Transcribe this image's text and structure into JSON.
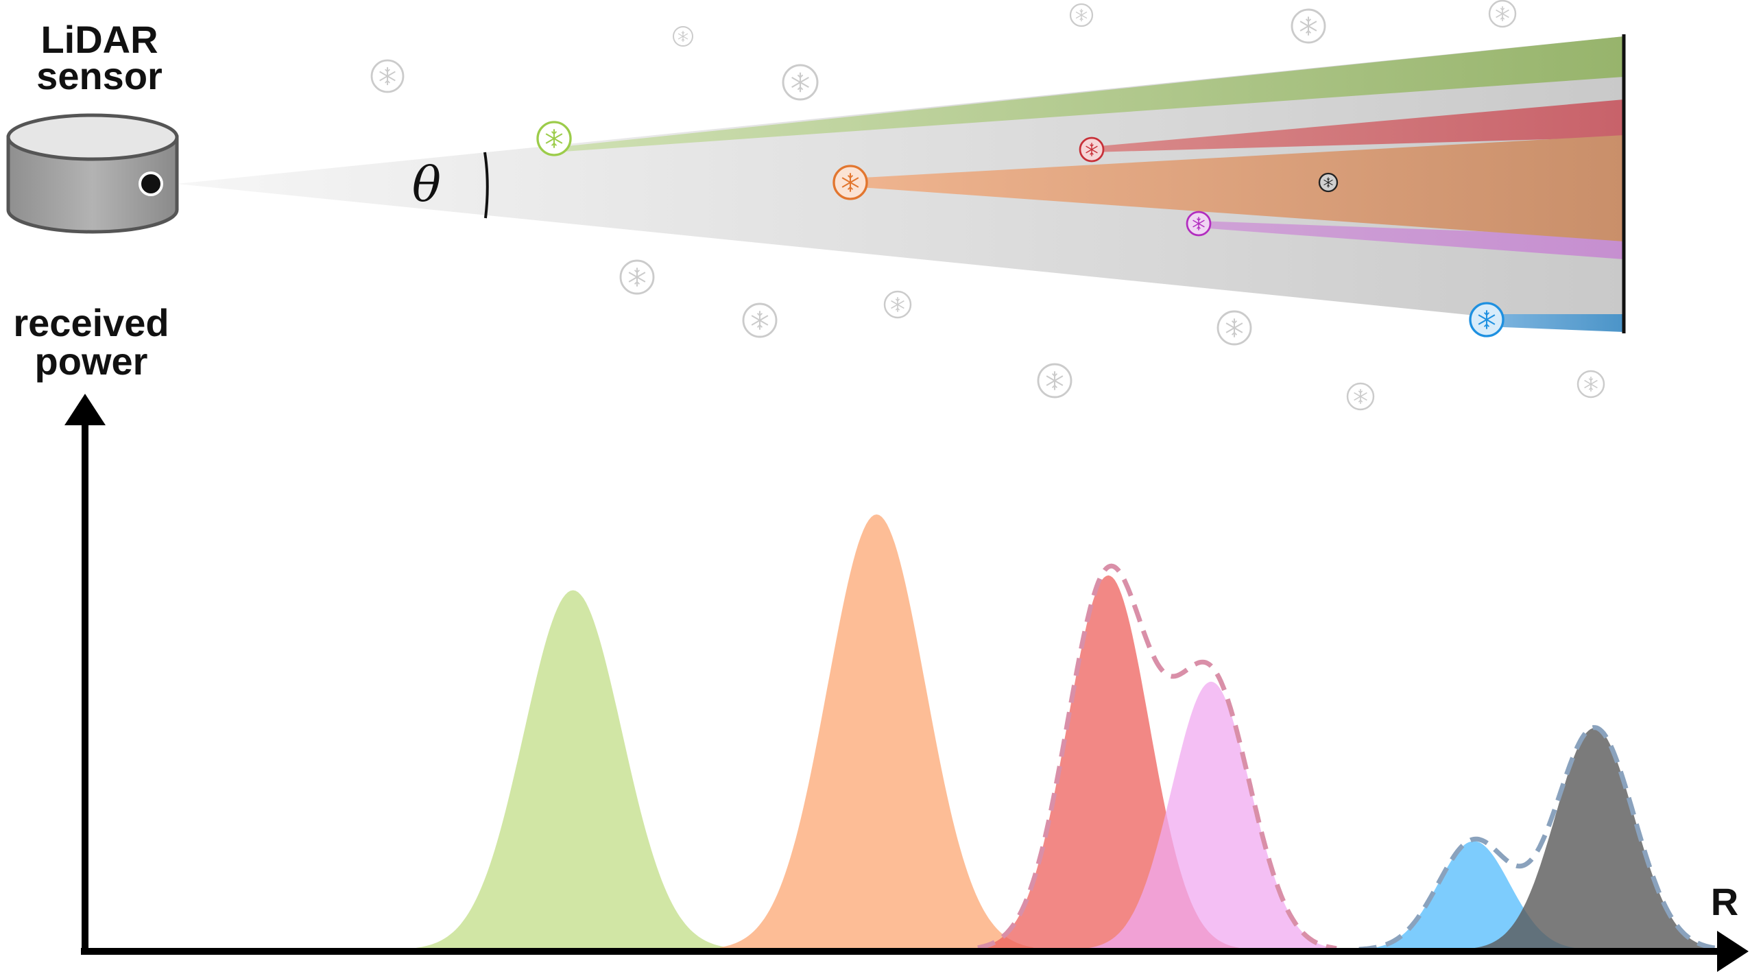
{
  "labels": {
    "sensor_line1": "LiDAR",
    "sensor_line2": "sensor",
    "ylabel_line1": "received",
    "ylabel_line2": "power",
    "xlabel": "R",
    "angle": "θ"
  },
  "colors": {
    "green": "#a9c97e",
    "orange": "#e88b5a",
    "red": "#d2575c",
    "magenta": "#c77bd0",
    "blue": "#2f8fd0",
    "black": "#222222",
    "gray_flake": "#c9c9c9"
  },
  "chart_data": {
    "type": "area",
    "x_unit": "relative range R",
    "ylim": [
      0,
      1
    ],
    "series": [
      {
        "key": "green",
        "center": 0.299,
        "height": 0.826,
        "width": 0.03
      },
      {
        "key": "orange",
        "center": 0.485,
        "height": 1.0,
        "width": 0.03
      },
      {
        "key": "red",
        "center": 0.627,
        "height": 0.86,
        "width": 0.025
      },
      {
        "key": "magenta",
        "center": 0.69,
        "height": 0.616,
        "width": 0.024
      },
      {
        "key": "blue",
        "center": 0.851,
        "height": 0.25,
        "width": 0.022
      },
      {
        "key": "gray",
        "center": 0.925,
        "height": 0.51,
        "width": 0.024
      }
    ],
    "dashed_envelopes": [
      {
        "components": [
          "red",
          "magenta"
        ]
      },
      {
        "components": [
          "blue",
          "gray"
        ]
      }
    ]
  }
}
